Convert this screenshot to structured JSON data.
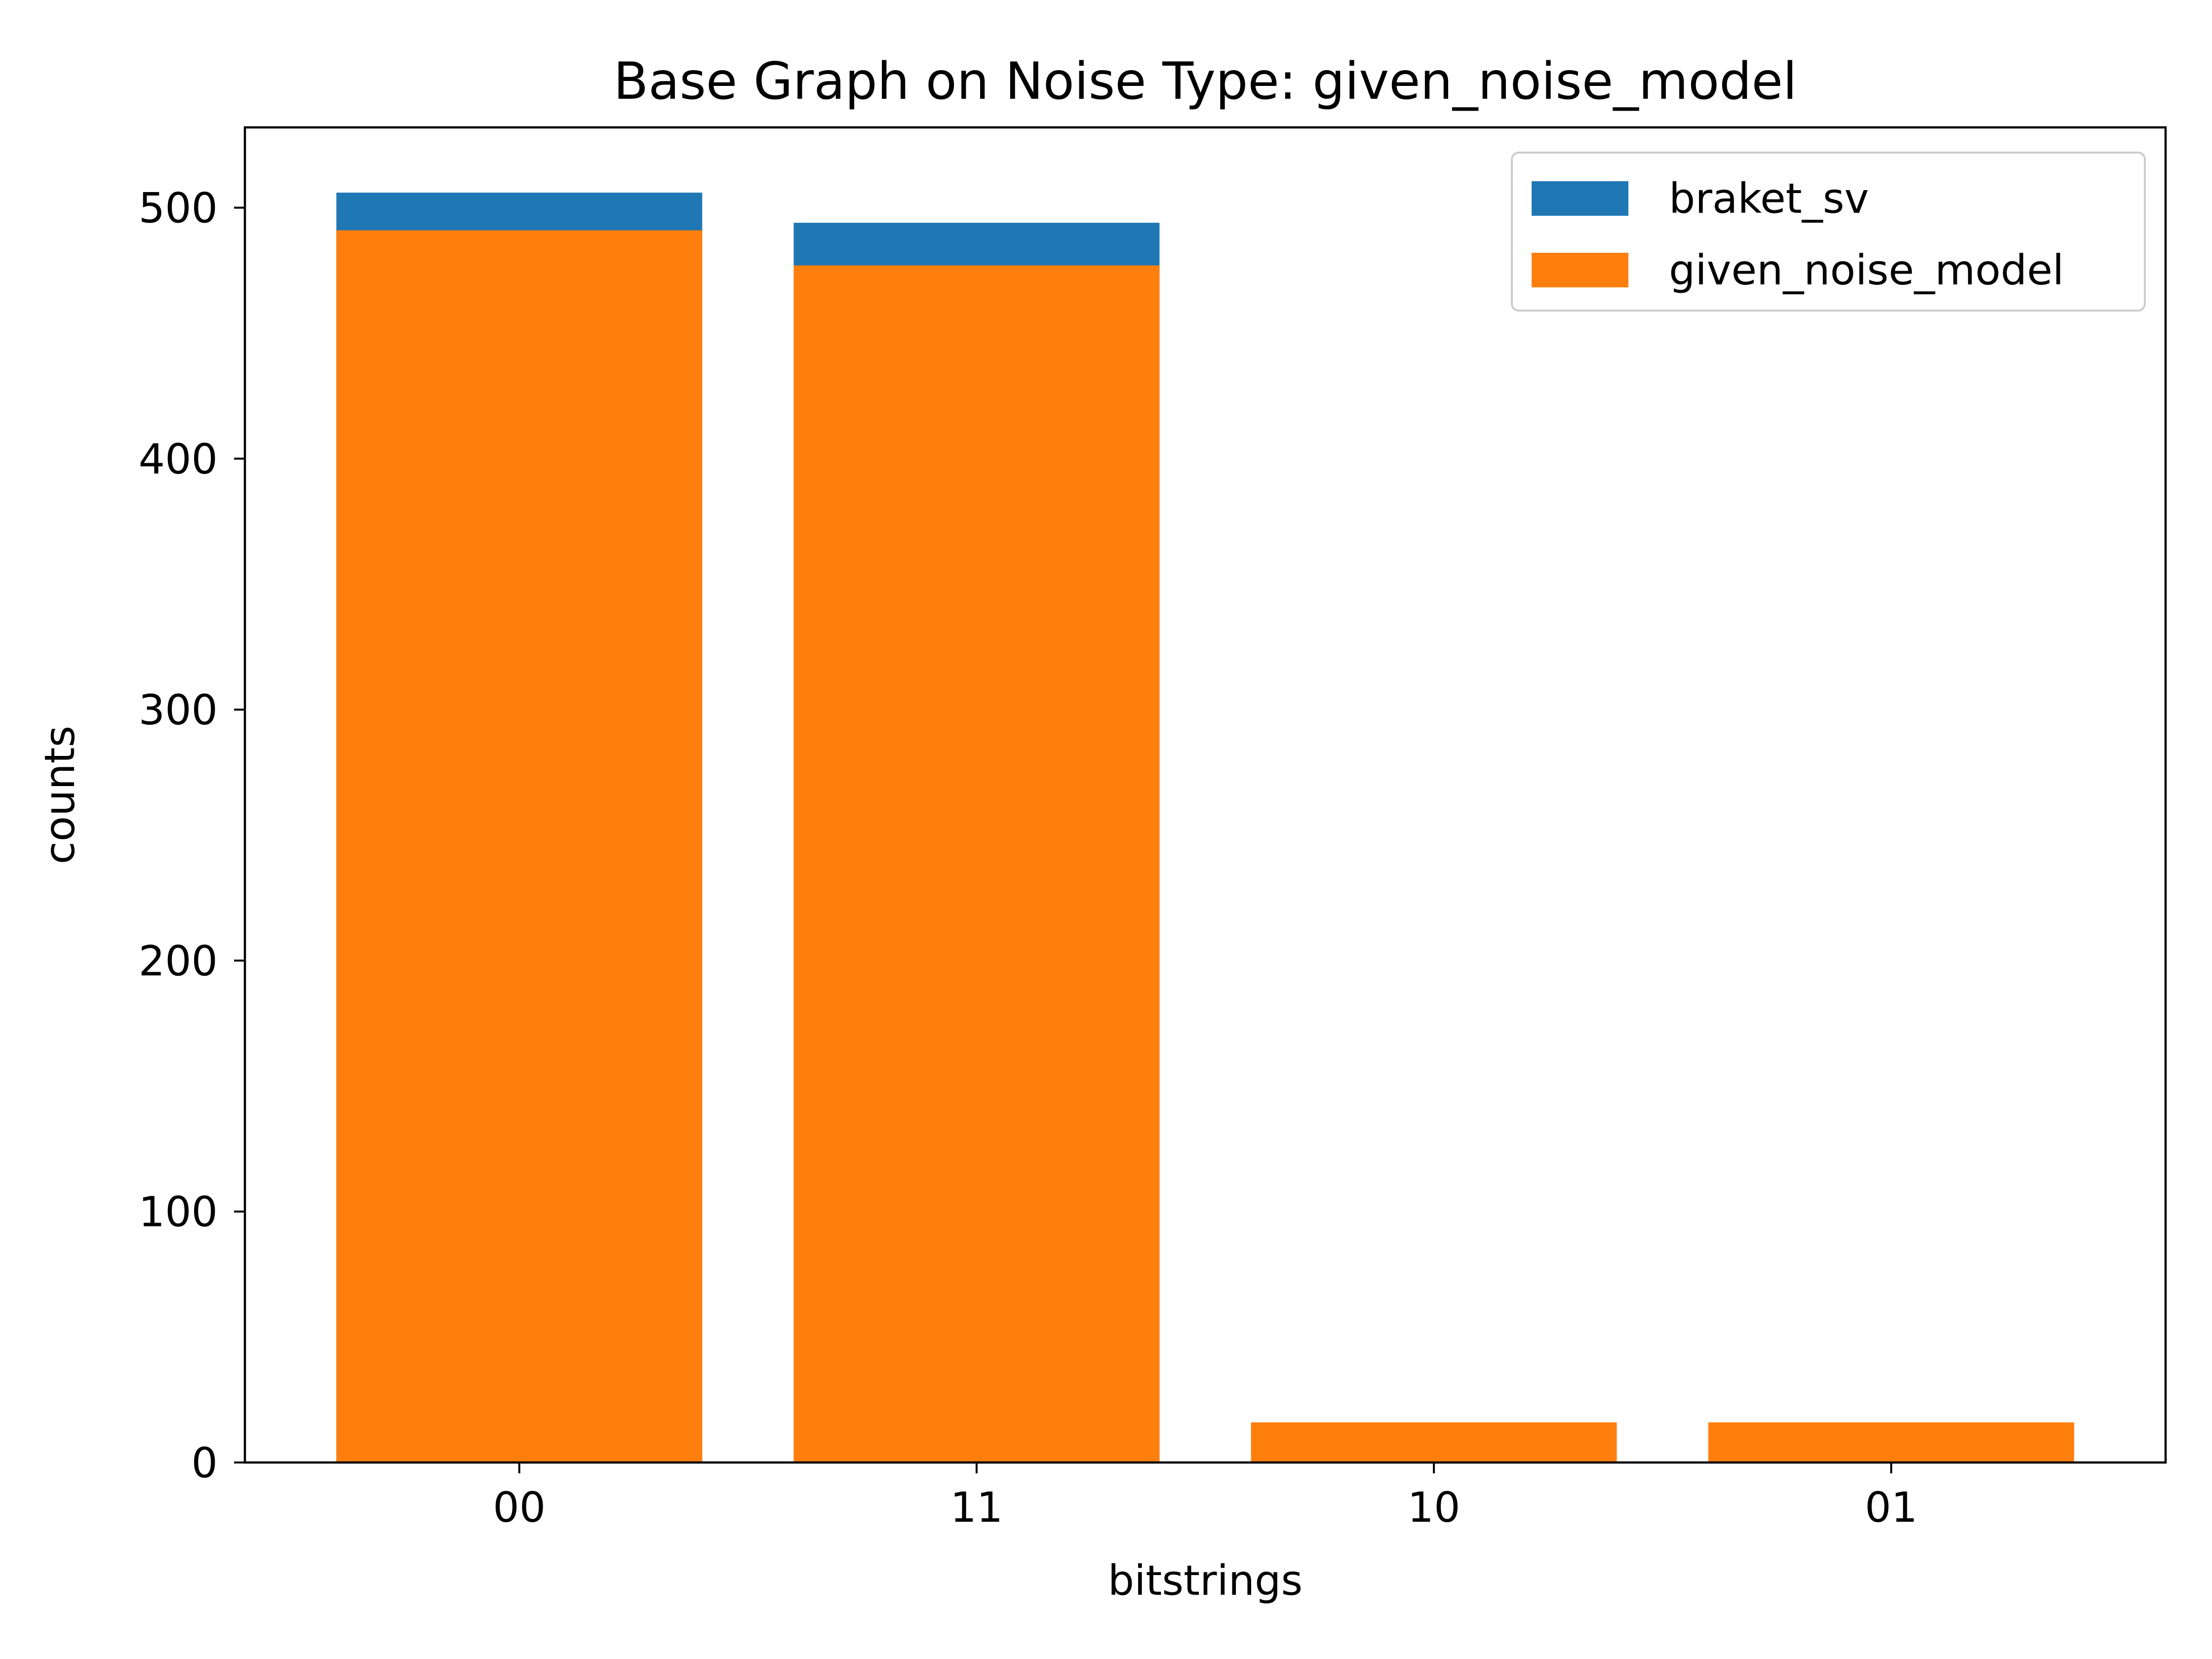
{
  "chart_data": {
    "type": "bar",
    "title": "Base Graph on Noise Type: given_noise_model",
    "xlabel": "bitstrings",
    "ylabel": "counts",
    "categories": [
      "00",
      "11",
      "10",
      "01"
    ],
    "series": [
      {
        "name": "braket_sv",
        "values": [
          506,
          494,
          0,
          0
        ],
        "color": "#1f77b4"
      },
      {
        "name": "given_noise_model",
        "values": [
          491,
          477,
          16,
          16
        ],
        "color": "#ff7f0e"
      }
    ],
    "ylim": [
      0,
      532
    ],
    "yticks": [
      0,
      100,
      200,
      300,
      400,
      500
    ],
    "grid": false,
    "legend_position": "top-right",
    "overlay": true
  }
}
